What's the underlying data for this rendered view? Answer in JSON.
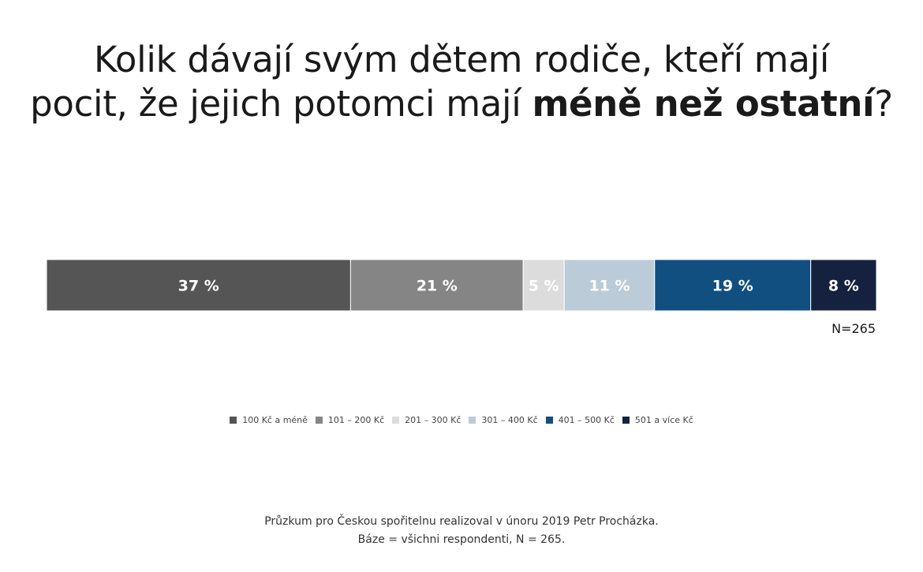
{
  "title": {
    "part1": "Kolik dávají svým dětem rodiče, kteří mají",
    "part2": "pocit, že jejich potomci mají ",
    "part3_bold": "méně než ostatní",
    "part4": "?"
  },
  "n_label": "N=265",
  "footer": {
    "line1": "Průzkum pro Českou spořitelnu realizoval v únoru 2019 Petr Procházka.",
    "line2": "Báze = všichni respondenti, N = 265."
  },
  "chart_data": {
    "type": "bar",
    "orientation": "horizontal-stacked-100",
    "title": "",
    "xlabel": "",
    "ylabel": "",
    "grid": false,
    "legend_position": "bottom",
    "unit": "%",
    "series": [
      {
        "name": "100 Kč a méně",
        "value": 37,
        "label": "37 %",
        "color": "#555555",
        "text_color": "#ffffff"
      },
      {
        "name": "101 – 200 Kč",
        "value": 21,
        "label": "21 %",
        "color": "#858585",
        "text_color": "#ffffff"
      },
      {
        "name": "201 – 300 Kč",
        "value": 5,
        "label": "5 %",
        "color": "#dcdcdc",
        "text_color": "#ffffff"
      },
      {
        "name": "301 – 400 Kč",
        "value": 11,
        "label": "11 %",
        "color": "#bccbd8",
        "text_color": "#ffffff"
      },
      {
        "name": "401 – 500 Kč",
        "value": 19,
        "label": "19 %",
        "color": "#114f80",
        "text_color": "#ffffff"
      },
      {
        "name": "501 a více Kč",
        "value": 8,
        "label": "8 %",
        "color": "#15213f",
        "text_color": "#ffffff"
      }
    ]
  }
}
